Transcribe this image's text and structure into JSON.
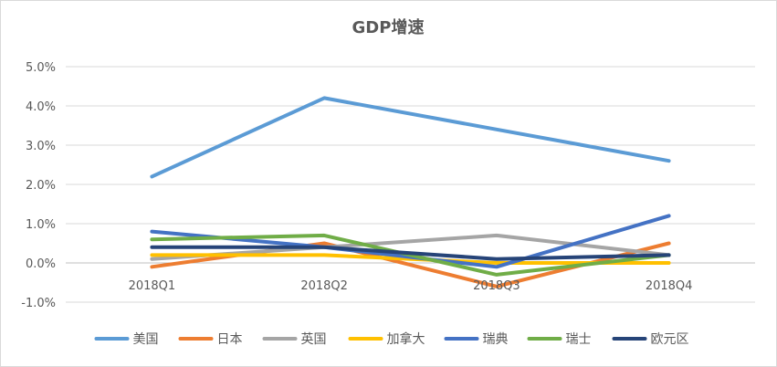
{
  "chart_data": {
    "type": "line",
    "title": "GDP增速",
    "xlabel": "",
    "ylabel": "",
    "categories": [
      "2018Q1",
      "2018Q2",
      "2018Q3",
      "2018Q4"
    ],
    "yticks": [
      "-1.0%",
      "0.0%",
      "1.0%",
      "2.0%",
      "3.0%",
      "4.0%",
      "5.0%"
    ],
    "ylim": [
      -1.0,
      5.0
    ],
    "grid": true,
    "legend_position": "bottom",
    "series": [
      {
        "name": "美国",
        "color": "#5b9bd5",
        "values": [
          2.2,
          4.2,
          3.4,
          2.6
        ]
      },
      {
        "name": "日本",
        "color": "#ed7d31",
        "values": [
          -0.1,
          0.5,
          -0.6,
          0.5
        ]
      },
      {
        "name": "英国",
        "color": "#a5a5a5",
        "values": [
          0.1,
          0.4,
          0.7,
          0.2
        ]
      },
      {
        "name": "加拿大",
        "color": "#ffc000",
        "values": [
          0.2,
          0.2,
          0.0,
          0.0
        ]
      },
      {
        "name": "瑞典",
        "color": "#4472c4",
        "values": [
          0.8,
          0.4,
          -0.1,
          1.2
        ]
      },
      {
        "name": "瑞士",
        "color": "#70ad47",
        "values": [
          0.6,
          0.7,
          -0.3,
          0.2
        ]
      },
      {
        "name": "欧元区",
        "color": "#264478",
        "values": [
          0.4,
          0.4,
          0.1,
          0.2
        ]
      }
    ]
  }
}
